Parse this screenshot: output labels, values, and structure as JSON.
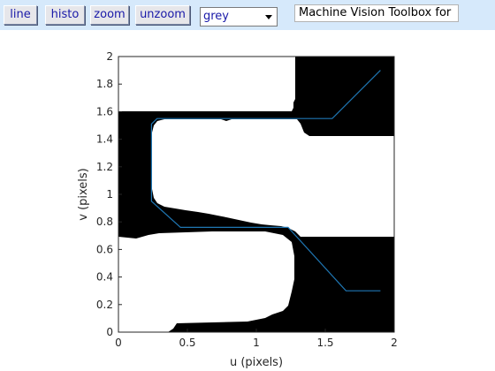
{
  "toolbar": {
    "buttons": [
      {
        "label": "line"
      },
      {
        "label": "histo"
      },
      {
        "label": "zoom"
      },
      {
        "label": "unzoom"
      }
    ],
    "colormap": {
      "selected": "grey"
    },
    "title_field": "Machine Vision Toolbox for"
  },
  "plot": {
    "xlabel": "u (pixels)",
    "ylabel": "v (pixels)",
    "xlim": [
      0,
      2
    ],
    "ylim": [
      0,
      2
    ],
    "xticks": [
      "0",
      "0.5",
      "1",
      "1.5",
      "2"
    ],
    "yticks": [
      "0",
      "0.2",
      "0.4",
      "0.6",
      "0.8",
      "1",
      "1.2",
      "1.4",
      "1.6",
      "1.8",
      "2"
    ],
    "line_color": "#1f77b4",
    "path": [
      [
        1.9,
        1.9
      ],
      [
        1.55,
        1.55
      ],
      [
        0.28,
        1.55
      ],
      [
        0.24,
        1.51
      ],
      [
        0.24,
        0.95
      ],
      [
        0.45,
        0.76
      ],
      [
        1.23,
        0.76
      ],
      [
        1.65,
        0.3
      ],
      [
        1.9,
        0.3
      ]
    ]
  }
}
